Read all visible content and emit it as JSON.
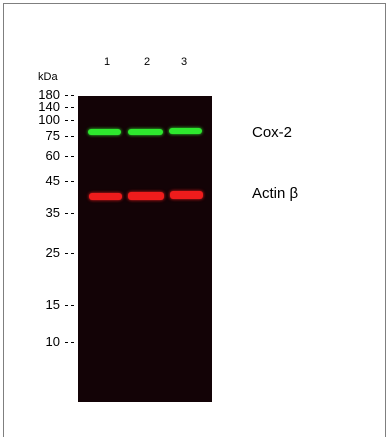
{
  "figure": {
    "mw_unit": "kDa",
    "lanes": [
      "1",
      "2",
      "3"
    ],
    "markers": [
      "180",
      "140",
      "100",
      "75",
      "60",
      "45",
      "35",
      "25",
      "15",
      "10"
    ],
    "proteins": [
      {
        "name": "Cox-2",
        "color": "#2ee82e",
        "marker_between": [
          "75",
          "100"
        ]
      },
      {
        "name": "Actin β",
        "color": "#ee1c1c",
        "marker_between": [
          "35",
          "45"
        ]
      }
    ],
    "background_color": "#130306"
  }
}
